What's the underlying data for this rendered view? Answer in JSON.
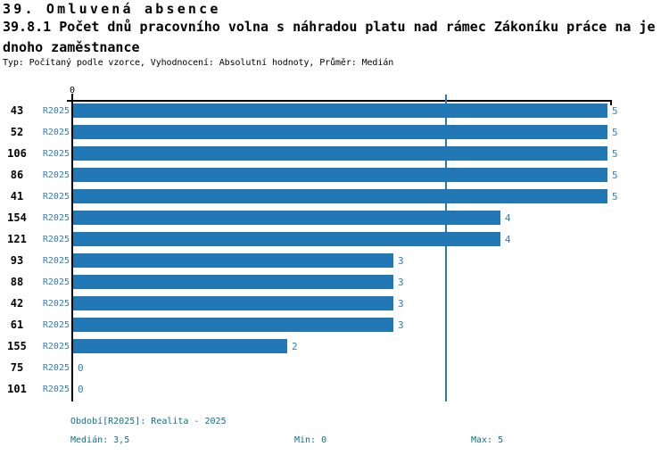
{
  "header": {
    "title": "39. Omluvená absence",
    "subtitle_line1": "39.8.1 Počet dnů pracovního volna s náhradou platu nad rámec Zákoníku práce na je",
    "subtitle_line2": "dnoho zaměstnance",
    "meta": "Typ: Počítaný podle vzorce, Vyhodnocení: Absolutní hodnoty, Průměr: Medián"
  },
  "chart_data": {
    "type": "bar",
    "orientation": "horizontal",
    "title": "39.8.1 Počet dnů pracovního volna s náhradou platu nad rámec Zákoníku práce na jednoho zaměstnance",
    "series_label": "R2025",
    "categories": [
      "43",
      "52",
      "106",
      "86",
      "41",
      "154",
      "121",
      "93",
      "88",
      "42",
      "61",
      "155",
      "75",
      "101"
    ],
    "values": [
      5,
      5,
      5,
      5,
      5,
      4,
      4,
      3,
      3,
      3,
      3,
      2,
      0,
      0
    ],
    "value_labels": [
      "5",
      "5",
      "5",
      "5",
      "5",
      "4",
      "4",
      "3",
      "3",
      "3",
      "3",
      "2",
      "0",
      "0"
    ],
    "xlim": [
      0,
      5
    ],
    "zero_tick_label": "0",
    "median_line": 3.5,
    "grid": false,
    "legend_position": "none",
    "colors": {
      "bar": "#2277b5",
      "label_blue": "#2e80ba",
      "median_line": "#2778b6",
      "axis": "#000000",
      "footer_teal": "#0e7087"
    }
  },
  "footer": {
    "period": "Období[R2025]: Realita - 2025",
    "median": "Medián: 3,5",
    "min": "Min: 0",
    "max": "Max: 5"
  }
}
